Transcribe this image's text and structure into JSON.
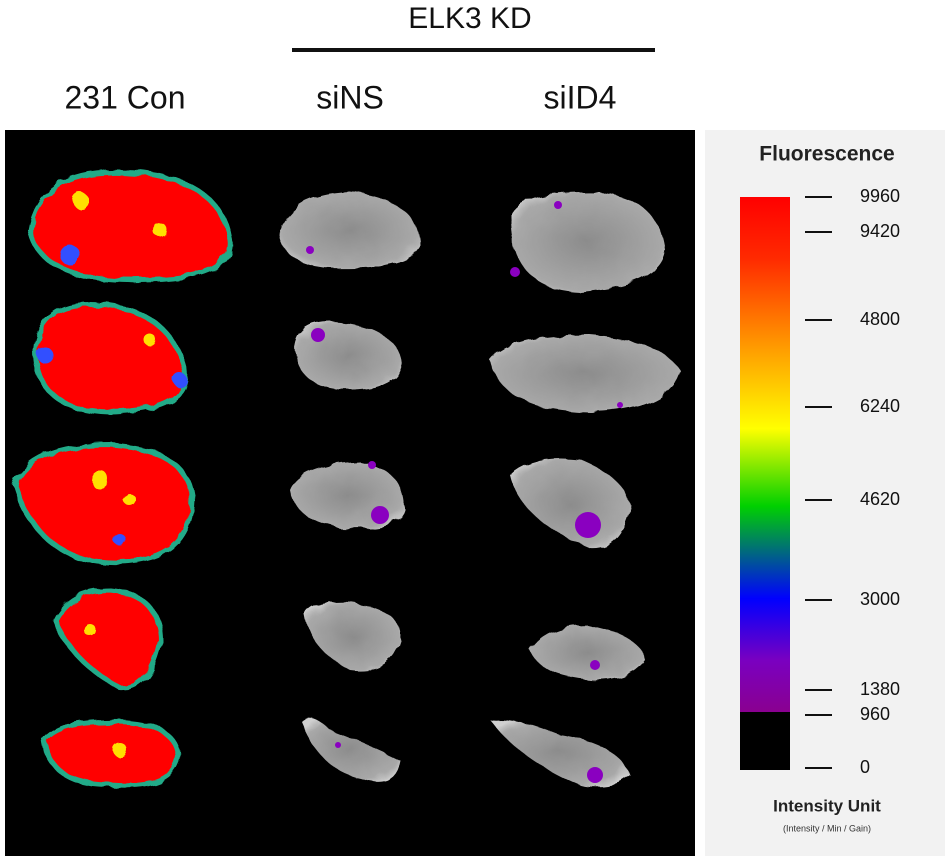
{
  "header": {
    "group_label": "ELK3 KD",
    "columns": [
      "231 Con",
      "siNS",
      "siID4"
    ]
  },
  "legend": {
    "title": "Fluorescence",
    "ticks": [
      "9960",
      "9420",
      "4800",
      "6240",
      "4620",
      "3000",
      "1380",
      "960",
      "0"
    ],
    "unit_title": "Intensity Unit",
    "unit_note": "(Intensity / Min / Gain)"
  }
}
